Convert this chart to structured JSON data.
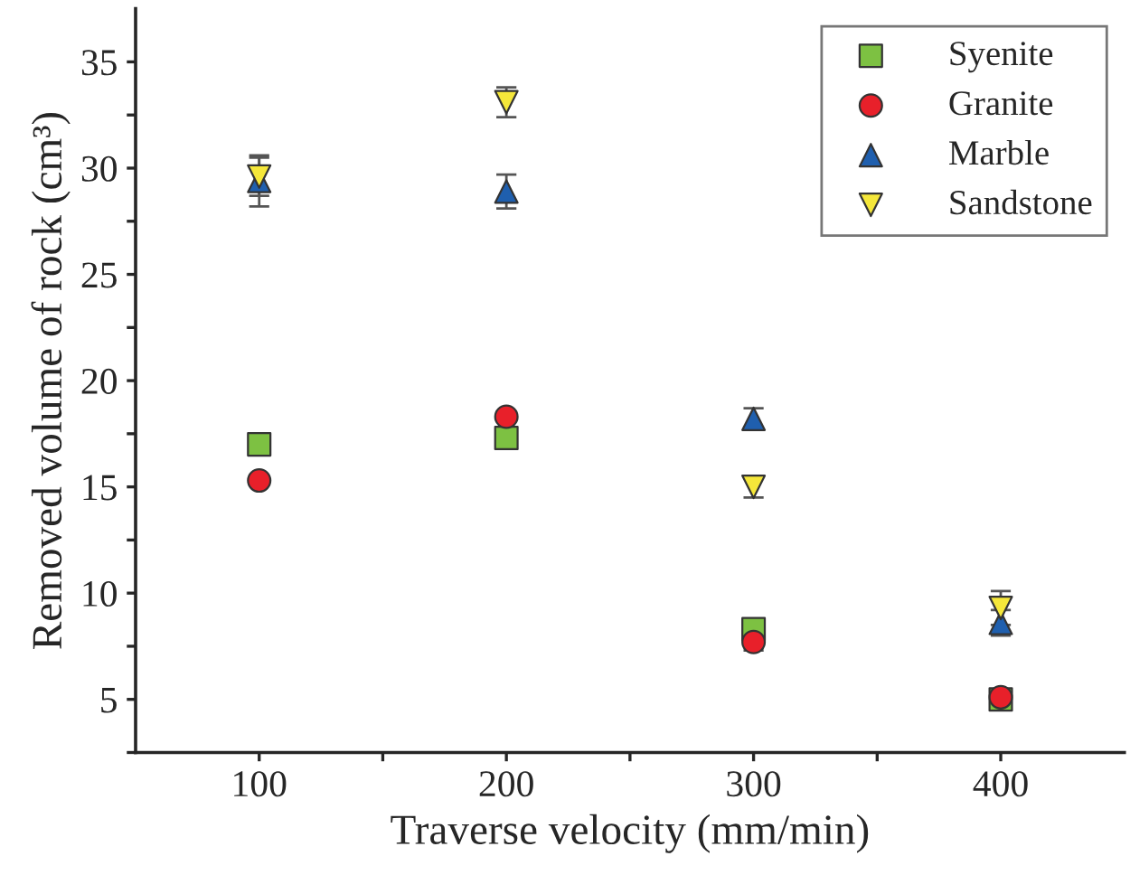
{
  "chart_data": {
    "type": "scatter",
    "xlabel": "Traverse velocity (mm/min)",
    "ylabel": "Removed volume of rock (cm³)",
    "x": [
      100,
      200,
      300,
      400
    ],
    "xlim": [
      50,
      450
    ],
    "ylim": [
      2.5,
      37.5
    ],
    "xticks": [
      100,
      {
        "value": 150,
        "label": null
      },
      200,
      {
        "value": 250,
        "label": null
      },
      300,
      {
        "value": 350,
        "label": null
      },
      400
    ],
    "yticks": [
      {
        "value": 2.5,
        "label": null
      },
      5,
      {
        "value": 7.5,
        "label": null
      },
      10,
      {
        "value": 12.5,
        "label": null
      },
      15,
      {
        "value": 17.5,
        "label": null
      },
      20,
      {
        "value": 22.5,
        "label": null
      },
      25,
      {
        "value": 27.5,
        "label": null
      },
      30,
      {
        "value": 32.5,
        "label": null
      },
      35
    ],
    "grid": false,
    "legend": "top right",
    "series": [
      {
        "name": "Syenite",
        "color": "#7dc142",
        "marker": "square",
        "values": [
          17.0,
          17.3,
          8.3,
          5.0
        ]
      },
      {
        "name": "Granite",
        "color": "#e8202a",
        "marker": "circle",
        "values": [
          15.3,
          18.3,
          7.7,
          5.1
        ],
        "errors": [
          null,
          null,
          0.4,
          0.3
        ]
      },
      {
        "name": "Marble",
        "color": "#1f5fae",
        "marker": "triangle",
        "values": [
          29.4,
          28.9,
          18.2,
          8.6
        ],
        "errors": [
          1.2,
          0.8,
          0.5,
          0.6
        ]
      },
      {
        "name": "Sandstone",
        "color": "#f5e73a",
        "marker": "triangle_down",
        "values": [
          29.6,
          33.1,
          15.0,
          9.3
        ],
        "errors": [
          0.9,
          0.7,
          0.5,
          0.8
        ]
      }
    ]
  }
}
